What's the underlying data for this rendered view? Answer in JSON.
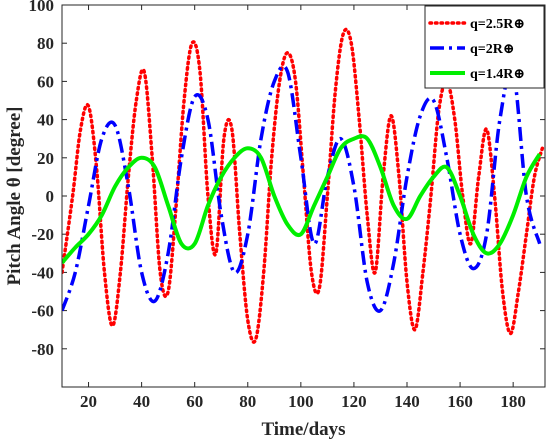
{
  "chart_data": {
    "type": "line",
    "title": "",
    "xlabel": "Time/days",
    "ylabel": "Pitch Angle θ [degree]",
    "xlim": [
      10,
      192
    ],
    "ylim": [
      -100,
      100
    ],
    "xticks": [
      20,
      40,
      60,
      80,
      100,
      120,
      140,
      160,
      180
    ],
    "yticks": [
      -80,
      -60,
      -40,
      -20,
      0,
      20,
      40,
      60,
      80,
      100
    ],
    "grid": false,
    "legend_position": "top-right",
    "series": [
      {
        "name": "q=2.5R⊕",
        "color": "#ff0000",
        "style": "dotted",
        "x": [
          10,
          14,
          17,
          20,
          23,
          26,
          29,
          32,
          35,
          38,
          41,
          44,
          47,
          50,
          53,
          56,
          59,
          62,
          65,
          68,
          71,
          74,
          77,
          80,
          83,
          86,
          89,
          92,
          95,
          98,
          101,
          104,
          107,
          110,
          113,
          116,
          119,
          122,
          125,
          128,
          131,
          134,
          137,
          140,
          143,
          146,
          149,
          152,
          155,
          158,
          161,
          164,
          167,
          170,
          173,
          176,
          179,
          182,
          185,
          188,
          191
        ],
        "y": [
          -40,
          0,
          35,
          47,
          15,
          -40,
          -68,
          -40,
          10,
          50,
          65,
          20,
          -40,
          -50,
          -5,
          50,
          80,
          65,
          0,
          -30,
          30,
          35,
          -20,
          -65,
          -75,
          -40,
          20,
          60,
          75,
          60,
          10,
          -40,
          -48,
          0,
          55,
          85,
          80,
          40,
          -10,
          -40,
          10,
          42,
          10,
          -45,
          -70,
          -40,
          0,
          45,
          60,
          40,
          0,
          -25,
          10,
          35,
          0,
          -50,
          -72,
          -50,
          -20,
          10,
          25
        ]
      },
      {
        "name": "q=2R⊕",
        "color": "#0000ff",
        "style": "dashdot",
        "x": [
          10,
          15,
          20,
          25,
          30,
          35,
          40,
          45,
          50,
          55,
          60,
          65,
          70,
          75,
          80,
          85,
          90,
          95,
          100,
          105,
          110,
          115,
          120,
          125,
          130,
          135,
          140,
          145,
          150,
          155,
          160,
          165,
          170,
          175,
          180,
          185,
          190
        ],
        "y": [
          -60,
          -40,
          -5,
          30,
          37,
          5,
          -40,
          -55,
          -30,
          20,
          52,
          40,
          -10,
          -40,
          -20,
          30,
          60,
          65,
          20,
          -25,
          10,
          30,
          5,
          -45,
          -60,
          -35,
          10,
          42,
          50,
          20,
          -20,
          -38,
          -20,
          40,
          65,
          0,
          -25
        ]
      },
      {
        "name": "q=1.4R⊕",
        "color": "#00ee00",
        "style": "solid",
        "x": [
          10,
          15,
          20,
          25,
          30,
          35,
          40,
          45,
          50,
          55,
          60,
          65,
          70,
          75,
          80,
          85,
          90,
          95,
          100,
          105,
          110,
          115,
          120,
          125,
          130,
          135,
          140,
          145,
          150,
          155,
          160,
          165,
          170,
          175,
          180,
          185,
          190
        ],
        "y": [
          -35,
          -27,
          -20,
          -10,
          5,
          15,
          20,
          15,
          -5,
          -25,
          -25,
          -5,
          10,
          20,
          25,
          20,
          0,
          -15,
          -20,
          -5,
          10,
          25,
          30,
          30,
          15,
          -5,
          -12,
          0,
          10,
          15,
          0,
          -20,
          -30,
          -25,
          -10,
          10,
          22
        ]
      }
    ]
  }
}
